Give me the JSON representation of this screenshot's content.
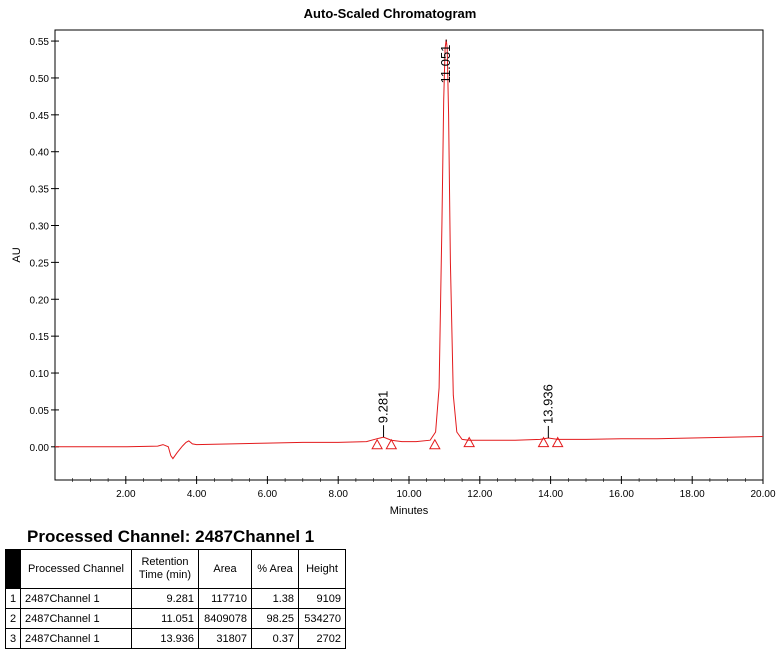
{
  "chart_data": {
    "type": "line",
    "title": "Auto-Scaled Chromatogram",
    "xlabel": "Minutes",
    "ylabel": "AU",
    "xlim": [
      0,
      20
    ],
    "ylim": [
      -0.045,
      0.565
    ],
    "x_ticks": [
      "2.00",
      "4.00",
      "6.00",
      "8.00",
      "10.00",
      "12.00",
      "14.00",
      "16.00",
      "18.00",
      "20.00"
    ],
    "x_tick_values": [
      2,
      4,
      6,
      8,
      10,
      12,
      14,
      16,
      18,
      20
    ],
    "y_ticks": [
      "0.00",
      "0.05",
      "0.10",
      "0.15",
      "0.20",
      "0.25",
      "0.30",
      "0.35",
      "0.40",
      "0.45",
      "0.50",
      "0.55"
    ],
    "y_tick_values": [
      0,
      0.05,
      0.1,
      0.15,
      0.2,
      0.25,
      0.3,
      0.35,
      0.4,
      0.45,
      0.5,
      0.55
    ],
    "line_color": "#e31a1c",
    "series": [
      {
        "x": [
          0,
          2.0,
          2.9,
          3.05,
          3.2,
          3.27,
          3.33,
          3.45,
          3.6,
          3.7,
          3.78,
          3.88,
          4.0,
          5.0,
          6.0,
          7.0,
          8.0,
          8.8,
          9.1,
          9.28,
          9.5,
          9.8,
          10.2,
          10.6,
          10.75,
          10.85,
          10.93,
          10.98,
          11.02,
          11.051,
          11.08,
          11.12,
          11.17,
          11.25,
          11.35,
          11.5,
          11.7,
          12.0,
          13.0,
          13.7,
          13.936,
          14.2,
          15.0,
          16.0,
          17.0,
          18.0,
          19.0,
          20.0
        ],
        "y": [
          0.0,
          0.0,
          0.001,
          0.003,
          0.0,
          -0.012,
          -0.016,
          -0.008,
          0.001,
          0.006,
          0.008,
          0.004,
          0.003,
          0.004,
          0.005,
          0.006,
          0.006,
          0.007,
          0.011,
          0.013,
          0.009,
          0.007,
          0.007,
          0.009,
          0.02,
          0.08,
          0.3,
          0.47,
          0.54,
          0.552,
          0.54,
          0.45,
          0.25,
          0.07,
          0.02,
          0.01,
          0.009,
          0.009,
          0.009,
          0.01,
          0.012,
          0.01,
          0.01,
          0.011,
          0.011,
          0.012,
          0.013,
          0.014
        ]
      }
    ],
    "peak_labels": [
      {
        "label": "9.281",
        "x": 9.281,
        "y": 0.013
      },
      {
        "label": "11.051",
        "x": 11.051,
        "y": 0.552
      },
      {
        "label": "13.936",
        "x": 13.936,
        "y": 0.012
      }
    ],
    "markers": [
      {
        "x": 9.1,
        "y": 0.0
      },
      {
        "x": 9.5,
        "y": 0.0
      },
      {
        "x": 10.73,
        "y": 0.0
      },
      {
        "x": 11.7,
        "y": 0.003
      },
      {
        "x": 13.8,
        "y": 0.003
      },
      {
        "x": 14.2,
        "y": 0.003
      }
    ]
  },
  "table": {
    "title": "Processed Channel: 2487Channel 1",
    "headers": [
      "Processed Channel",
      "Retention Time (min)",
      "Area",
      "% Area",
      "Height"
    ],
    "rows": [
      {
        "idx": "1",
        "channel": "2487Channel 1",
        "rt": "9.281",
        "area": "117710",
        "pct": "1.38",
        "height": "9109"
      },
      {
        "idx": "2",
        "channel": "2487Channel 1",
        "rt": "11.051",
        "area": "8409078",
        "pct": "98.25",
        "height": "534270"
      },
      {
        "idx": "3",
        "channel": "2487Channel 1",
        "rt": "13.936",
        "area": "31807",
        "pct": "0.37",
        "height": "2702"
      }
    ]
  }
}
